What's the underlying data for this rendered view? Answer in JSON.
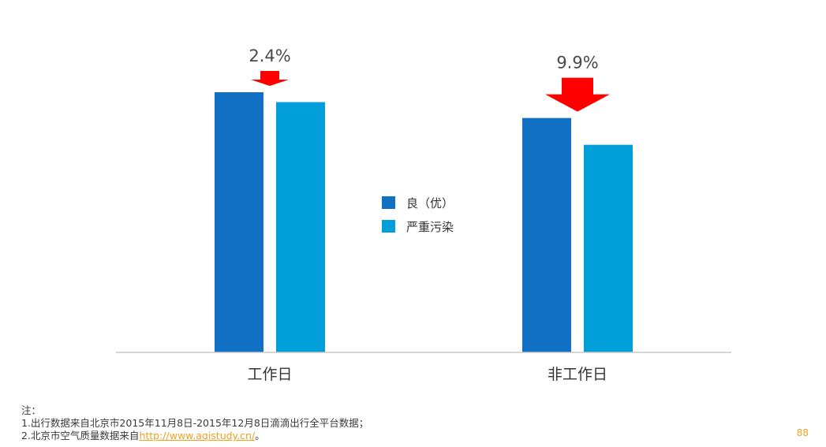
{
  "chart_data": {
    "type": "bar",
    "categories": [
      "工作日",
      "非工作日"
    ],
    "series": [
      {
        "name": "良（优）",
        "color": "#1170c4",
        "values": [
          100,
          90.1
        ]
      },
      {
        "name": "严重污染",
        "color": "#009fd9",
        "values": [
          96.2,
          79.8
        ]
      }
    ],
    "ylim": [
      0,
      100
    ],
    "grid": false,
    "legend_position": "center",
    "annotations": [
      {
        "category": "工作日",
        "text": "2.4%",
        "icon": "down-arrow-icon",
        "color": "#ff0000"
      },
      {
        "category": "非工作日",
        "text": "9.9%",
        "icon": "down-arrow-icon",
        "color": "#ff0000"
      }
    ]
  },
  "notes": {
    "heading": "注：",
    "line1": "1.出行数据来自北京市2015年11月8日-2015年12月8日滴滴出行全平台数据；",
    "line2_prefix": "2.北京市空气质量数据来自",
    "line2_link": "http://www.aqistudy.cn/",
    "line2_suffix": "。"
  },
  "page_number": "88"
}
